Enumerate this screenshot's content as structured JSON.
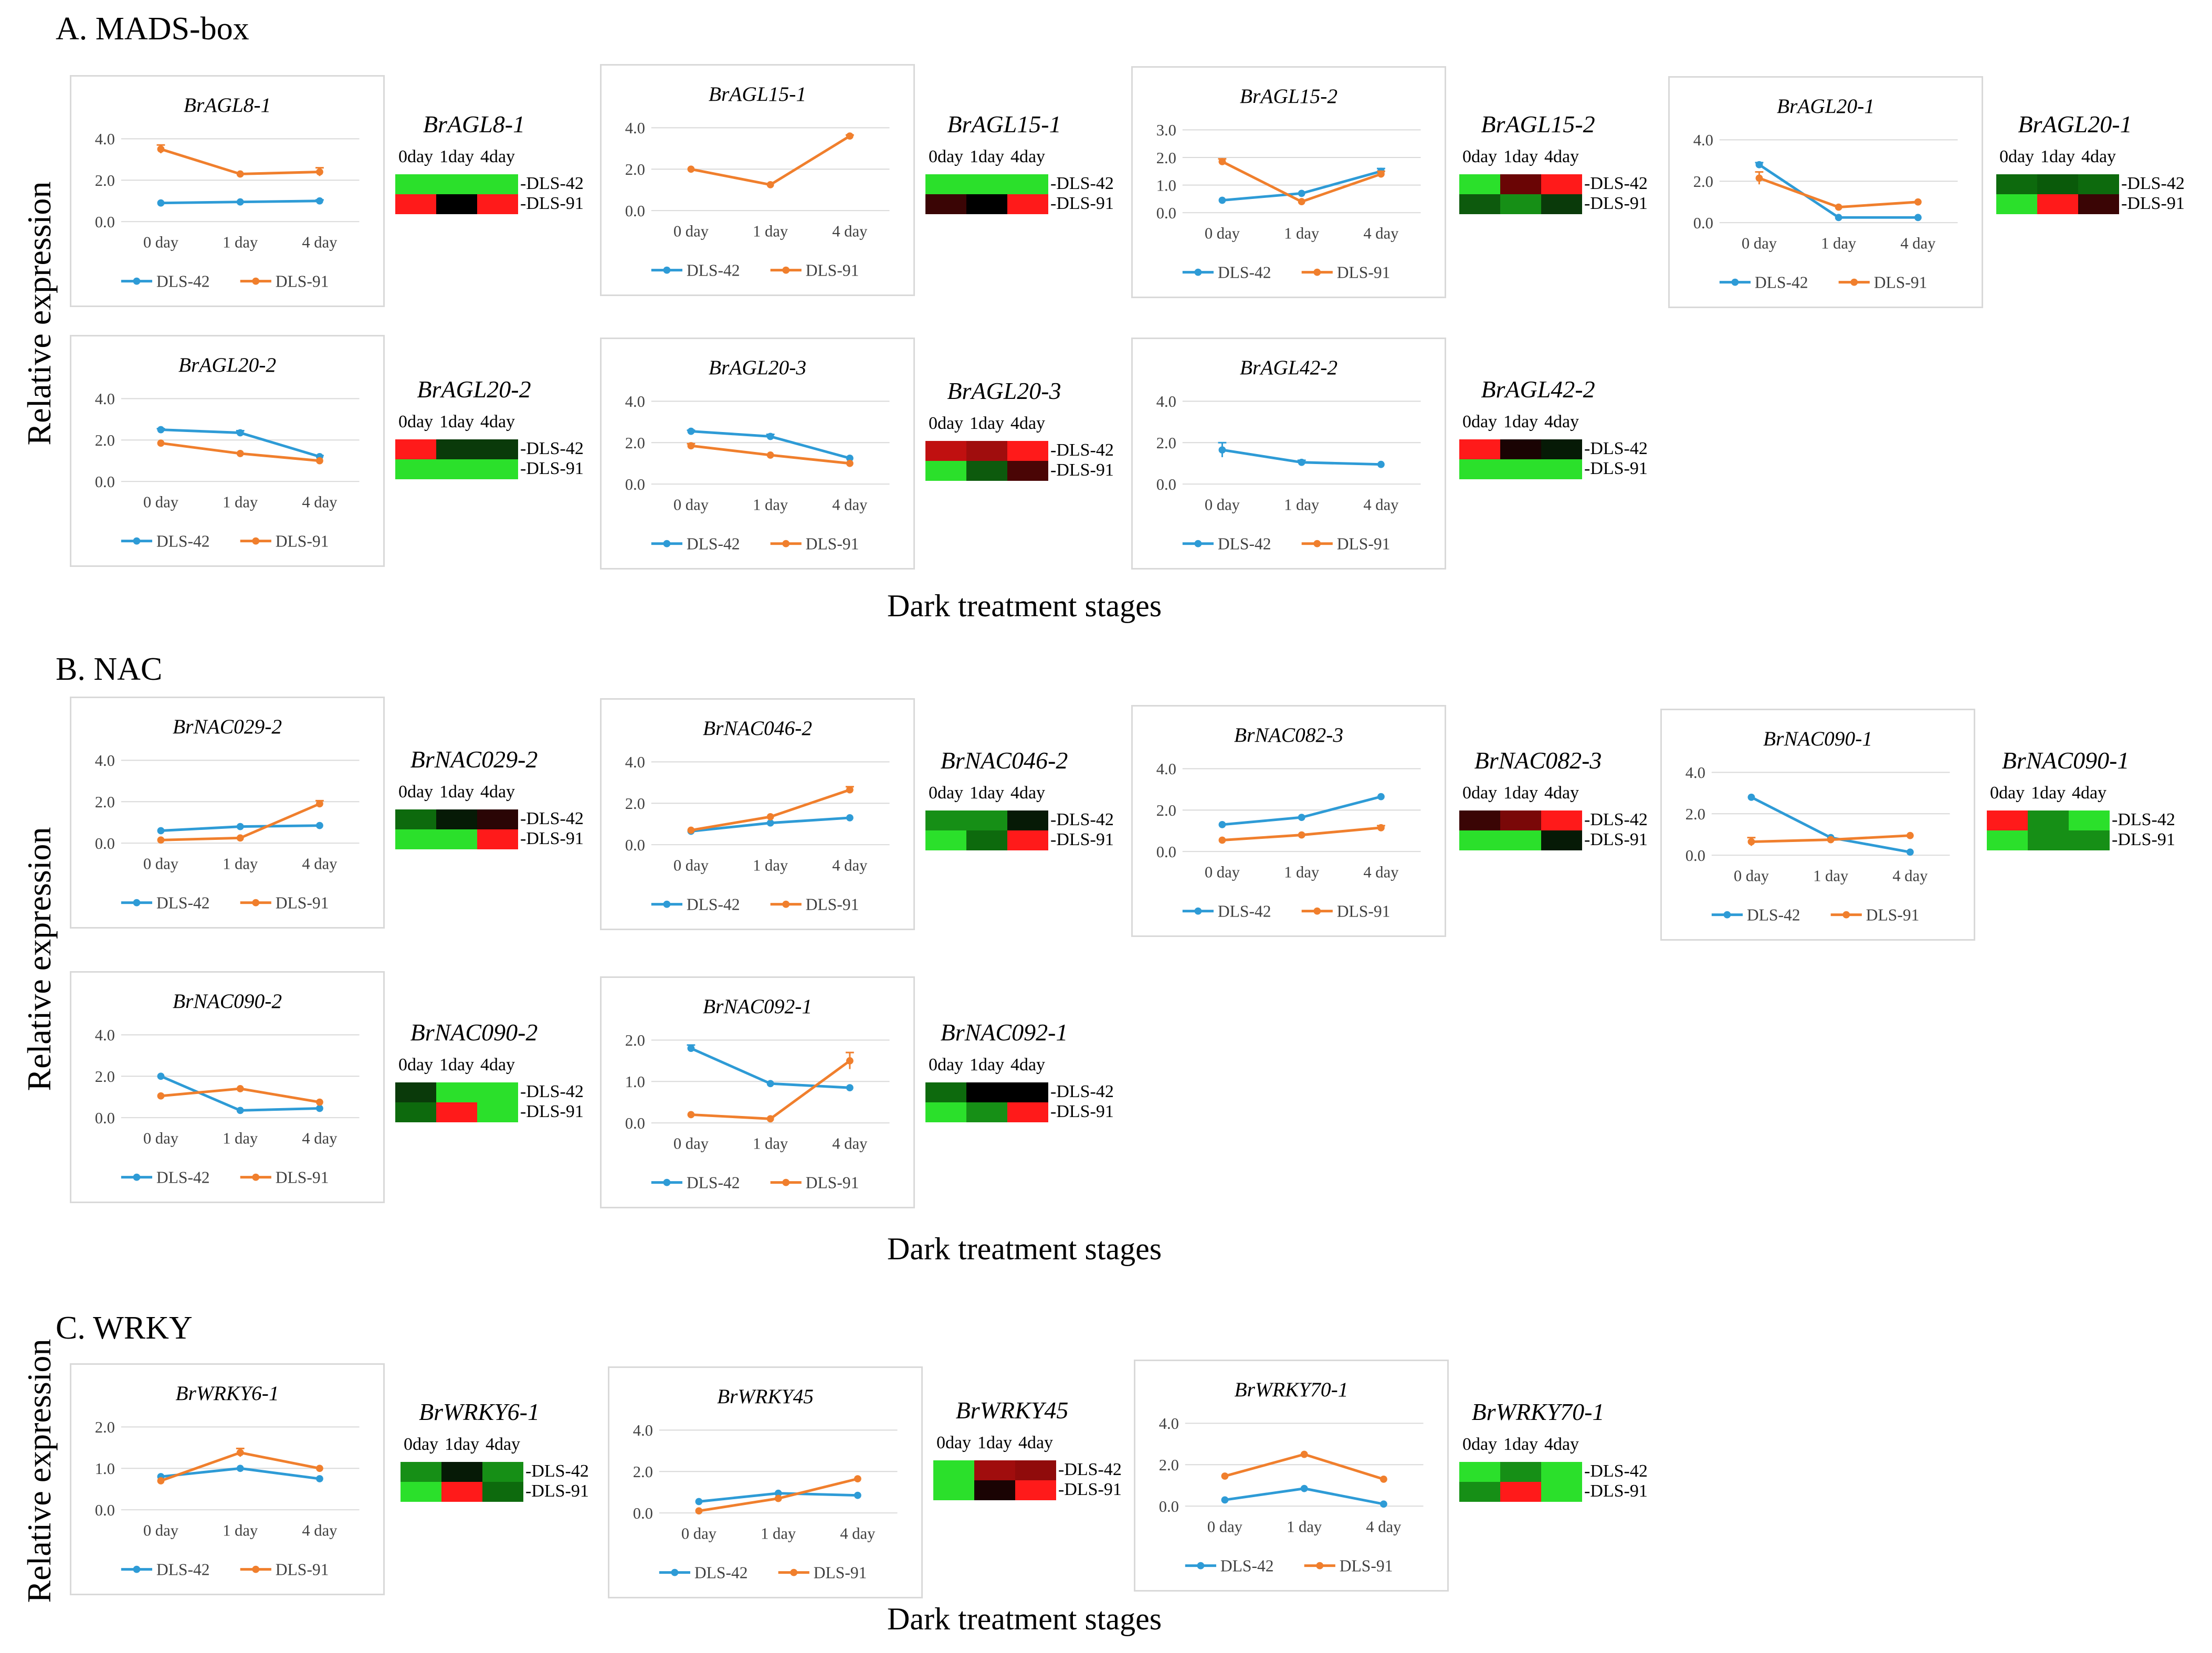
{
  "sections": [
    {
      "title": "A. MADS-box",
      "xaxis_title": "Dark treatment stages"
    },
    {
      "title": "B. NAC",
      "xaxis_title": "Dark treatment stages"
    },
    {
      "title": "C. WRKY",
      "xaxis_title": "Dark treatment stages"
    }
  ],
  "y_axis_title": "Relative expression",
  "legend": {
    "series1": "DLS-42",
    "series2": "DLS-91"
  },
  "colors": {
    "DLS-42": "#2e9bd6",
    "DLS-91": "#f07f2d",
    "grid": "#d9d9d9",
    "axis_text": "#404040"
  },
  "heatmap_day_labels": [
    "0day",
    "1day",
    "4day"
  ],
  "chart_data": [
    {
      "type": "line",
      "section": "A",
      "gene": "BrAGL8-1",
      "categories": [
        "0 day",
        "1 day",
        "4 day"
      ],
      "yticks": [
        "0.0",
        "2.0",
        "4.0"
      ],
      "ylim": [
        0,
        4
      ],
      "series": [
        {
          "name": "DLS-42",
          "values": [
            0.9,
            0.95,
            1.0
          ],
          "errors": [
            0,
            0,
            0.05
          ]
        },
        {
          "name": "DLS-91",
          "values": [
            3.5,
            2.3,
            2.4
          ],
          "errors": [
            0.2,
            0,
            0.2
          ]
        }
      ]
    },
    {
      "type": "line",
      "section": "A",
      "gene": "BrAGL15-1",
      "categories": [
        "0 day",
        "1 day",
        "4 day"
      ],
      "yticks": [
        "0.0",
        "2.0",
        "4.0"
      ],
      "ylim": [
        0,
        4
      ],
      "series": [
        {
          "name": "DLS-42",
          "values": null
        },
        {
          "name": "DLS-91",
          "values": [
            2.0,
            1.25,
            3.6
          ],
          "errors": [
            0,
            0,
            0.05
          ]
        }
      ]
    },
    {
      "type": "line",
      "section": "A",
      "gene": "BrAGL15-2",
      "categories": [
        "0 day",
        "1 day",
        "4 day"
      ],
      "yticks": [
        "0.0",
        "1.0",
        "2.0",
        "3.0"
      ],
      "ylim": [
        0,
        3
      ],
      "series": [
        {
          "name": "DLS-42",
          "values": [
            0.45,
            0.7,
            1.5
          ],
          "errors": [
            0,
            0,
            0.1
          ]
        },
        {
          "name": "DLS-91",
          "values": [
            1.85,
            0.4,
            1.4
          ],
          "errors": [
            0.1,
            0,
            0.1
          ]
        }
      ]
    },
    {
      "type": "line",
      "section": "A",
      "gene": "BrAGL20-1",
      "categories": [
        "0 day",
        "1 day",
        "4 day"
      ],
      "yticks": [
        "0.0",
        "2.0",
        "4.0"
      ],
      "ylim": [
        0,
        4
      ],
      "series": [
        {
          "name": "DLS-42",
          "values": [
            2.8,
            0.25,
            0.25
          ],
          "errors": [
            0.1,
            0,
            0
          ]
        },
        {
          "name": "DLS-91",
          "values": [
            2.15,
            0.75,
            1.0
          ],
          "errors": [
            0.3,
            0,
            0
          ]
        }
      ]
    },
    {
      "type": "line",
      "section": "A",
      "gene": "BrAGL20-2",
      "categories": [
        "0 day",
        "1 day",
        "4 day"
      ],
      "yticks": [
        "0.0",
        "2.0",
        "4.0"
      ],
      "ylim": [
        0,
        4
      ],
      "series": [
        {
          "name": "DLS-42",
          "values": [
            2.5,
            2.35,
            1.2
          ],
          "errors": [
            0.05,
            0.1,
            0.05
          ]
        },
        {
          "name": "DLS-91",
          "values": [
            1.85,
            1.35,
            1.0
          ],
          "errors": [
            0,
            0,
            0
          ]
        }
      ]
    },
    {
      "type": "line",
      "section": "A",
      "gene": "BrAGL20-3",
      "categories": [
        "0 day",
        "1 day",
        "4 day"
      ],
      "yticks": [
        "0.0",
        "2.0",
        "4.0"
      ],
      "ylim": [
        0,
        4
      ],
      "series": [
        {
          "name": "DLS-42",
          "values": [
            2.55,
            2.3,
            1.25
          ],
          "errors": [
            0.05,
            0.1,
            0
          ]
        },
        {
          "name": "DLS-91",
          "values": [
            1.85,
            1.4,
            1.0
          ],
          "errors": [
            0.1,
            0,
            0
          ]
        }
      ]
    },
    {
      "type": "line",
      "section": "A",
      "gene": "BrAGL42-2",
      "categories": [
        "0 day",
        "1 day",
        "4 day"
      ],
      "yticks": [
        "0.0",
        "2.0",
        "4.0"
      ],
      "ylim": [
        0,
        4
      ],
      "series": [
        {
          "name": "DLS-42",
          "values": [
            1.65,
            1.05,
            0.95
          ],
          "errors": [
            0.35,
            0.1,
            0
          ]
        },
        {
          "name": "DLS-91",
          "values": null
        }
      ]
    },
    {
      "type": "line",
      "section": "B",
      "gene": "BrNAC029-2",
      "categories": [
        "0 day",
        "1 day",
        "4 day"
      ],
      "yticks": [
        "0.0",
        "2.0",
        "4.0"
      ],
      "ylim": [
        0,
        4
      ],
      "series": [
        {
          "name": "DLS-42",
          "values": [
            0.6,
            0.8,
            0.85
          ],
          "errors": [
            0,
            0,
            0
          ]
        },
        {
          "name": "DLS-91",
          "values": [
            0.15,
            0.25,
            1.9
          ],
          "errors": [
            0,
            0,
            0.15
          ]
        }
      ]
    },
    {
      "type": "line",
      "section": "B",
      "gene": "BrNAC046-2",
      "categories": [
        "0 day",
        "1 day",
        "4 day"
      ],
      "yticks": [
        "0.0",
        "2.0",
        "4.0"
      ],
      "ylim": [
        0,
        4
      ],
      "series": [
        {
          "name": "DLS-42",
          "values": [
            0.65,
            1.05,
            1.3
          ],
          "errors": [
            0,
            0,
            0
          ]
        },
        {
          "name": "DLS-91",
          "values": [
            0.7,
            1.35,
            2.65
          ],
          "errors": [
            0,
            0,
            0.15
          ]
        }
      ]
    },
    {
      "type": "line",
      "section": "B",
      "gene": "BrNAC082-3",
      "categories": [
        "0 day",
        "1 day",
        "4 day"
      ],
      "yticks": [
        "0.0",
        "2.0",
        "4.0"
      ],
      "ylim": [
        0,
        4
      ],
      "series": [
        {
          "name": "DLS-42",
          "values": [
            1.3,
            1.65,
            2.65
          ],
          "errors": [
            0,
            0,
            0
          ]
        },
        {
          "name": "DLS-91",
          "values": [
            0.55,
            0.8,
            1.15
          ],
          "errors": [
            0,
            0,
            0.1
          ]
        }
      ]
    },
    {
      "type": "line",
      "section": "B",
      "gene": "BrNAC090-1",
      "categories": [
        "0 day",
        "1 day",
        "4 day"
      ],
      "yticks": [
        "0.0",
        "2.0",
        "4.0"
      ],
      "ylim": [
        0,
        4
      ],
      "series": [
        {
          "name": "DLS-42",
          "values": [
            2.8,
            0.85,
            0.15
          ],
          "errors": [
            0,
            0,
            0
          ]
        },
        {
          "name": "DLS-91",
          "values": [
            0.65,
            0.75,
            0.95
          ],
          "errors": [
            0.2,
            0,
            0
          ]
        }
      ]
    },
    {
      "type": "line",
      "section": "B",
      "gene": "BrNAC090-2",
      "categories": [
        "0 day",
        "1 day",
        "4 day"
      ],
      "yticks": [
        "0.0",
        "2.0",
        "4.0"
      ],
      "ylim": [
        0,
        4
      ],
      "series": [
        {
          "name": "DLS-42",
          "values": [
            2.0,
            0.35,
            0.45
          ],
          "errors": [
            0,
            0,
            0
          ]
        },
        {
          "name": "DLS-91",
          "values": [
            1.05,
            1.4,
            0.75
          ],
          "errors": [
            0,
            0,
            0
          ]
        }
      ]
    },
    {
      "type": "line",
      "section": "B",
      "gene": "BrNAC092-1",
      "categories": [
        "0 day",
        "1 day",
        "4 day"
      ],
      "yticks": [
        "0.0",
        "1.0",
        "2.0"
      ],
      "ylim": [
        0,
        2
      ],
      "series": [
        {
          "name": "DLS-42",
          "values": [
            1.8,
            0.95,
            0.85
          ],
          "errors": [
            0.08,
            0,
            0
          ]
        },
        {
          "name": "DLS-91",
          "values": [
            0.2,
            0.1,
            1.5
          ],
          "errors": [
            0,
            0,
            0.2
          ]
        }
      ]
    },
    {
      "type": "line",
      "section": "C",
      "gene": "BrWRKY6-1",
      "categories": [
        "0 day",
        "1 day",
        "4 day"
      ],
      "yticks": [
        "0.0",
        "1.0",
        "2.0"
      ],
      "ylim": [
        0,
        2
      ],
      "series": [
        {
          "name": "DLS-42",
          "values": [
            0.8,
            1.0,
            0.75
          ],
          "errors": [
            0,
            0,
            0
          ]
        },
        {
          "name": "DLS-91",
          "values": [
            0.7,
            1.38,
            1.0
          ],
          "errors": [
            0,
            0.1,
            0
          ]
        }
      ]
    },
    {
      "type": "line",
      "section": "C",
      "gene": "BrWRKY45",
      "categories": [
        "0 day",
        "1 day",
        "4 day"
      ],
      "yticks": [
        "0.0",
        "2.0",
        "4.0"
      ],
      "ylim": [
        0,
        4
      ],
      "series": [
        {
          "name": "DLS-42",
          "values": [
            0.55,
            0.95,
            0.85
          ],
          "errors": [
            0,
            0,
            0
          ]
        },
        {
          "name": "DLS-91",
          "values": [
            0.1,
            0.7,
            1.65
          ],
          "errors": [
            0,
            0,
            0
          ]
        }
      ]
    },
    {
      "type": "line",
      "section": "C",
      "gene": "BrWRKY70-1",
      "categories": [
        "0 day",
        "1 day",
        "4 day"
      ],
      "yticks": [
        "0.0",
        "2.0",
        "4.0"
      ],
      "ylim": [
        0,
        4
      ],
      "series": [
        {
          "name": "DLS-42",
          "values": [
            0.3,
            0.85,
            0.1
          ],
          "errors": [
            0,
            0,
            0
          ]
        },
        {
          "name": "DLS-91",
          "values": [
            1.45,
            2.5,
            1.3
          ],
          "errors": [
            0,
            0,
            0
          ]
        }
      ]
    },
    {
      "type": "heatmap",
      "gene": "BrAGL8-1",
      "columns": [
        "0day",
        "1day",
        "4day"
      ],
      "rows": [
        "DLS-42",
        "DLS-91"
      ],
      "cells": [
        [
          "#2be02b",
          "#2be02b",
          "#2be02b"
        ],
        [
          "#ff1a1a",
          "#000000",
          "#ff1a1a"
        ]
      ]
    },
    {
      "type": "heatmap",
      "gene": "BrAGL15-1",
      "columns": [
        "0day",
        "1day",
        "4day"
      ],
      "rows": [
        "DLS-42",
        "DLS-91"
      ],
      "cells": [
        [
          "#2be02b",
          "#2be02b",
          "#2be02b"
        ],
        [
          "#3a0505",
          "#000000",
          "#ff1a1a"
        ]
      ]
    },
    {
      "type": "heatmap",
      "gene": "BrAGL15-2",
      "columns": [
        "0day",
        "1day",
        "4day"
      ],
      "rows": [
        "DLS-42",
        "DLS-91"
      ],
      "cells": [
        [
          "#2be02b",
          "#6a0505",
          "#ff1a1a"
        ],
        [
          "#0d5a0d",
          "#168f16",
          "#0a3a0a"
        ]
      ]
    },
    {
      "type": "heatmap",
      "gene": "BrAGL20-1",
      "columns": [
        "0day",
        "1day",
        "4day"
      ],
      "rows": [
        "DLS-42",
        "DLS-91"
      ],
      "cells": [
        [
          "#0d6a0d",
          "#0a5a0a",
          "#0d6a0d"
        ],
        [
          "#2be02b",
          "#ff1a1a",
          "#3a0505"
        ]
      ]
    },
    {
      "type": "heatmap",
      "gene": "BrAGL20-2",
      "columns": [
        "0day",
        "1day",
        "4day"
      ],
      "rows": [
        "DLS-42",
        "DLS-91"
      ],
      "cells": [
        [
          "#ff1a1a",
          "#0a3a0a",
          "#0a3a0a"
        ],
        [
          "#2be02b",
          "#2be02b",
          "#2be02b"
        ]
      ]
    },
    {
      "type": "heatmap",
      "gene": "BrAGL20-3",
      "columns": [
        "0day",
        "1day",
        "4day"
      ],
      "rows": [
        "DLS-42",
        "DLS-91"
      ],
      "cells": [
        [
          "#c01010",
          "#a00d0d",
          "#ff1a1a"
        ],
        [
          "#2be02b",
          "#0d5a0d",
          "#4a0505"
        ]
      ]
    },
    {
      "type": "heatmap",
      "gene": "BrAGL42-2",
      "columns": [
        "0day",
        "1day",
        "4day"
      ],
      "rows": [
        "DLS-42",
        "DLS-91"
      ],
      "cells": [
        [
          "#ff1a1a",
          "#1a0303",
          "#061a06"
        ],
        [
          "#2be02b",
          "#2be02b",
          "#2be02b"
        ]
      ]
    },
    {
      "type": "heatmap",
      "gene": "BrNAC029-2",
      "columns": [
        "0day",
        "1day",
        "4day"
      ],
      "rows": [
        "DLS-42",
        "DLS-91"
      ],
      "cells": [
        [
          "#0d6a0d",
          "#061a06",
          "#2a0505"
        ],
        [
          "#2be02b",
          "#2be02b",
          "#ff1a1a"
        ]
      ]
    },
    {
      "type": "heatmap",
      "gene": "BrNAC046-2",
      "columns": [
        "0day",
        "1day",
        "4day"
      ],
      "rows": [
        "DLS-42",
        "DLS-91"
      ],
      "cells": [
        [
          "#168f16",
          "#168f16",
          "#061a06"
        ],
        [
          "#2be02b",
          "#0d6a0d",
          "#ff1a1a"
        ]
      ]
    },
    {
      "type": "heatmap",
      "gene": "BrNAC082-3",
      "columns": [
        "0day",
        "1day",
        "4day"
      ],
      "rows": [
        "DLS-42",
        "DLS-91"
      ],
      "cells": [
        [
          "#3a0505",
          "#7a0808",
          "#ff1a1a"
        ],
        [
          "#2be02b",
          "#2be02b",
          "#061a06"
        ]
      ]
    },
    {
      "type": "heatmap",
      "gene": "BrNAC090-1",
      "columns": [
        "0day",
        "1day",
        "4day"
      ],
      "rows": [
        "DLS-42",
        "DLS-91"
      ],
      "cells": [
        [
          "#ff1a1a",
          "#168f16",
          "#2be02b"
        ],
        [
          "#2be02b",
          "#168f16",
          "#168f16"
        ]
      ]
    },
    {
      "type": "heatmap",
      "gene": "BrNAC090-2",
      "columns": [
        "0day",
        "1day",
        "4day"
      ],
      "rows": [
        "DLS-42",
        "DLS-91"
      ],
      "cells": [
        [
          "#0a3a0a",
          "#2be02b",
          "#2be02b"
        ],
        [
          "#0d6a0d",
          "#ff1a1a",
          "#2be02b"
        ]
      ]
    },
    {
      "type": "heatmap",
      "gene": "BrNAC092-1",
      "columns": [
        "0day",
        "1day",
        "4day"
      ],
      "rows": [
        "DLS-42",
        "DLS-91"
      ],
      "cells": [
        [
          "#0d6a0d",
          "#000000",
          "#000000"
        ],
        [
          "#2be02b",
          "#168f16",
          "#ff1a1a"
        ]
      ]
    },
    {
      "type": "heatmap",
      "gene": "BrWRKY6-1",
      "columns": [
        "0day",
        "1day",
        "4day"
      ],
      "rows": [
        "DLS-42",
        "DLS-91"
      ],
      "cells": [
        [
          "#168f16",
          "#061a06",
          "#168f16"
        ],
        [
          "#2be02b",
          "#ff1a1a",
          "#0d6a0d"
        ]
      ]
    },
    {
      "type": "heatmap",
      "gene": "BrWRKY45",
      "columns": [
        "0day",
        "1day",
        "4day"
      ],
      "rows": [
        "DLS-42",
        "DLS-91"
      ],
      "cells": [
        [
          "#2be02b",
          "#a00d0d",
          "#900b0b"
        ],
        [
          "#2be02b",
          "#1a0303",
          "#ff1a1a"
        ]
      ]
    },
    {
      "type": "heatmap",
      "gene": "BrWRKY70-1",
      "columns": [
        "0day",
        "1day",
        "4day"
      ],
      "rows": [
        "DLS-42",
        "DLS-91"
      ],
      "cells": [
        [
          "#2be02b",
          "#168f16",
          "#2be02b"
        ],
        [
          "#168f16",
          "#ff1a1a",
          "#2be02b"
        ]
      ]
    }
  ]
}
